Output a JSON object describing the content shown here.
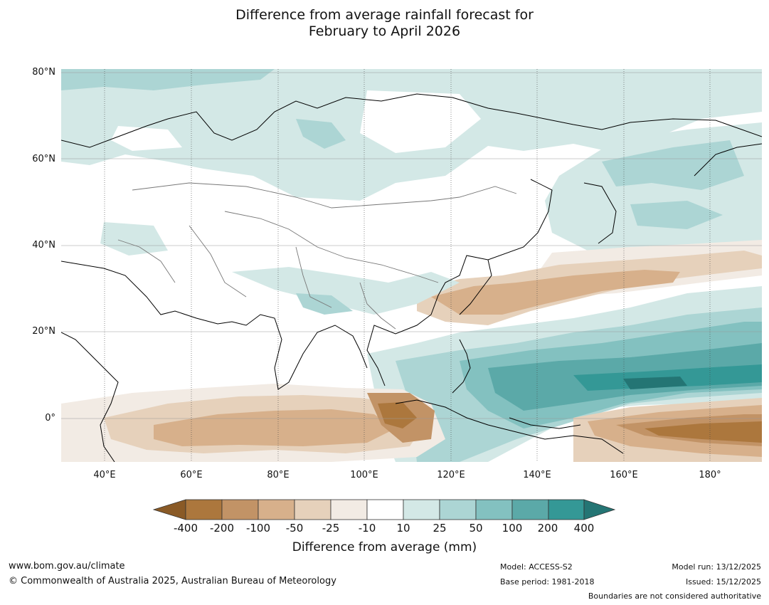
{
  "title": {
    "line1": "Difference from average rainfall forecast for",
    "line2": "February to April 2026"
  },
  "axes": {
    "lat_labels": [
      "80°N",
      "60°N",
      "40°N",
      "20°N",
      "0°"
    ],
    "lon_labels": [
      "40°E",
      "60°E",
      "80°E",
      "100°E",
      "120°E",
      "140°E",
      "160°E",
      "180°"
    ],
    "lon_range": [
      30,
      192
    ],
    "lat_range": [
      -10,
      80
    ],
    "grid": true
  },
  "colorbar": {
    "labels": [
      "-400",
      "-200",
      "-100",
      "-50",
      "-25",
      "-10",
      "10",
      "25",
      "50",
      "100",
      "200",
      "400"
    ],
    "colors": [
      "#8a5a26",
      "#ac773d",
      "#c29366",
      "#d7b08b",
      "#e6d1bb",
      "#f2ebe4",
      "#ffffff",
      "#d3e8e6",
      "#acd5d4",
      "#83c1c0",
      "#5ba9a8",
      "#349896",
      "#247574"
    ],
    "title": "Difference from average (mm)",
    "extend": "both"
  },
  "footer": {
    "website": "www.bom.gov.au/climate",
    "copyright": "© Commonwealth of Australia 2025, Australian Bureau of Meteorology",
    "model": "Model: ACCESS-S2",
    "base_period": "Base period: 1981-2018",
    "model_run": "Model run: 13/12/2025",
    "issued": "Issued: 15/12/2025",
    "disclaimer": "Boundaries are not considered authoritative"
  }
}
